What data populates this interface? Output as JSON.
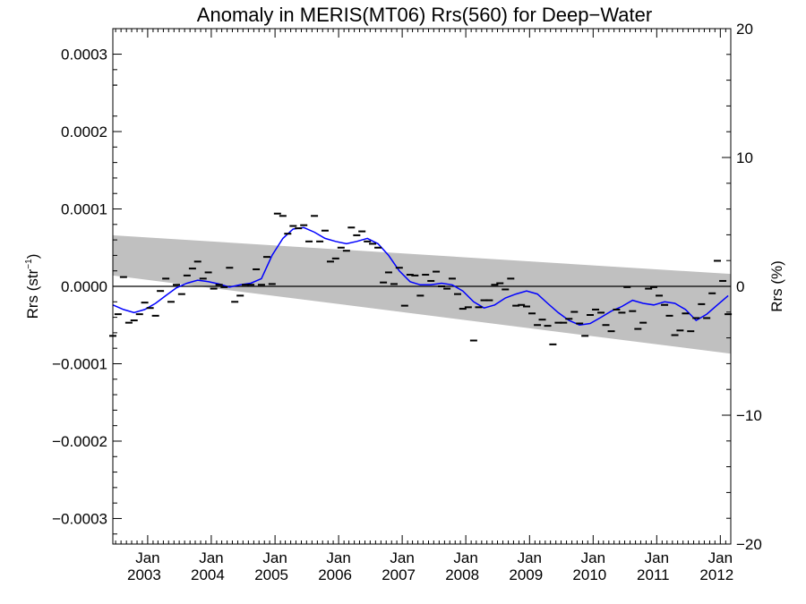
{
  "chart_data": {
    "type": "line",
    "title": "Anomaly in MERIS(MT06) Rrs(560) for Deep−Water",
    "ylabel_left_main": "Rrs (str",
    "ylabel_left_sup": "−1",
    "ylabel_left_close": ")",
    "ylabel_right": "Rrs (%)",
    "xlim": [
      "2002-06-15",
      "2012-03-01"
    ],
    "ylim": [
      -0.000333,
      0.000333
    ],
    "ylim_right": [
      -20,
      20
    ],
    "x_ticks": [
      {
        "date": "2003-01-01",
        "month": "Jan",
        "year": "2003"
      },
      {
        "date": "2004-01-01",
        "month": "Jan",
        "year": "2004"
      },
      {
        "date": "2005-01-01",
        "month": "Jan",
        "year": "2005"
      },
      {
        "date": "2006-01-01",
        "month": "Jan",
        "year": "2006"
      },
      {
        "date": "2007-01-01",
        "month": "Jan",
        "year": "2007"
      },
      {
        "date": "2008-01-01",
        "month": "Jan",
        "year": "2008"
      },
      {
        "date": "2009-01-01",
        "month": "Jan",
        "year": "2009"
      },
      {
        "date": "2010-01-01",
        "month": "Jan",
        "year": "2010"
      },
      {
        "date": "2011-01-01",
        "month": "Jan",
        "year": "2011"
      },
      {
        "date": "2012-01-01",
        "month": "Jan",
        "year": "2012"
      }
    ],
    "y_ticks_left": [
      {
        "value": 0.0003,
        "label": "0.0003"
      },
      {
        "value": 0.0002,
        "label": "0.0002"
      },
      {
        "value": 0.0001,
        "label": "0.0001"
      },
      {
        "value": 0.0,
        "label": "0.0000"
      },
      {
        "value": -0.0001,
        "label": "−0.0001"
      },
      {
        "value": -0.0002,
        "label": "−0.0002"
      },
      {
        "value": -0.0003,
        "label": "−0.0003"
      }
    ],
    "y_ticks_right": [
      {
        "value": 20,
        "label": "20"
      },
      {
        "value": 10,
        "label": "10"
      },
      {
        "value": 0,
        "label": "0"
      },
      {
        "value": -10,
        "label": "−10"
      },
      {
        "value": -20,
        "label": "−20"
      }
    ],
    "zero_line": 0.0,
    "confidence_band": {
      "x": [
        "2002-06-15",
        "2012-03-01"
      ],
      "upper": [
        6.6e-05,
        1.6e-05
      ],
      "lower": [
        1.4e-05,
        -8.7e-05
      ],
      "color": "#c0c0c0"
    },
    "series": [
      {
        "style": "marker-dash",
        "color": "#000000",
        "x": [
          "2002-06-15",
          "2002-07-15",
          "2002-08-15",
          "2002-09-15",
          "2002-10-15",
          "2002-11-15",
          "2002-12-15",
          "2003-01-15",
          "2003-02-15",
          "2003-03-15",
          "2003-04-15",
          "2003-05-15",
          "2003-06-15",
          "2003-07-15",
          "2003-08-15",
          "2003-09-15",
          "2003-10-15",
          "2003-11-15",
          "2003-12-15",
          "2004-01-15",
          "2004-02-15",
          "2004-03-15",
          "2004-04-15",
          "2004-05-15",
          "2004-06-15",
          "2004-07-15",
          "2004-08-15",
          "2004-09-15",
          "2004-10-15",
          "2004-11-15",
          "2004-12-15",
          "2005-01-15",
          "2005-02-15",
          "2005-03-15",
          "2005-04-15",
          "2005-05-15",
          "2005-06-15",
          "2005-07-15",
          "2005-08-15",
          "2005-09-15",
          "2005-10-15",
          "2005-11-15",
          "2005-12-15",
          "2006-01-15",
          "2006-02-15",
          "2006-03-15",
          "2006-04-15",
          "2006-05-15",
          "2006-06-15",
          "2006-07-15",
          "2006-08-15",
          "2006-09-15",
          "2006-10-15",
          "2006-11-15",
          "2006-12-15",
          "2007-01-15",
          "2007-02-15",
          "2007-03-15",
          "2007-04-15",
          "2007-05-15",
          "2007-06-15",
          "2007-07-15",
          "2007-08-15",
          "2007-09-15",
          "2007-10-15",
          "2007-11-15",
          "2007-12-15",
          "2008-01-15",
          "2008-02-15",
          "2008-03-15",
          "2008-04-15",
          "2008-05-15",
          "2008-06-15",
          "2008-07-15",
          "2008-08-15",
          "2008-09-15",
          "2008-10-15",
          "2008-11-15",
          "2008-12-15",
          "2009-01-15",
          "2009-02-15",
          "2009-03-15",
          "2009-04-15",
          "2009-05-15",
          "2009-06-15",
          "2009-07-15",
          "2009-08-15",
          "2009-09-15",
          "2009-10-15",
          "2009-11-15",
          "2009-12-15",
          "2010-01-15",
          "2010-02-15",
          "2010-03-15",
          "2010-04-15",
          "2010-05-15",
          "2010-06-15",
          "2010-07-15",
          "2010-08-15",
          "2010-09-15",
          "2010-10-15",
          "2010-11-15",
          "2010-12-15",
          "2011-01-15",
          "2011-02-15",
          "2011-03-15",
          "2011-04-15",
          "2011-05-15",
          "2011-06-15",
          "2011-07-15",
          "2011-08-15",
          "2011-09-15",
          "2011-10-15",
          "2011-11-15",
          "2011-12-15",
          "2012-01-15",
          "2012-02-15"
        ],
        "values": [
          -6.4e-05,
          -3.6e-05,
          1.2e-05,
          -4.7e-05,
          -4.4e-05,
          -3.6e-05,
          -2.1e-05,
          -2.8e-05,
          -3.8e-05,
          -6e-06,
          1e-05,
          -2e-05,
          2e-06,
          -1e-05,
          1.4e-05,
          2.3e-05,
          3.2e-05,
          1e-05,
          1.8e-05,
          -3e-06,
          2e-06,
          -1e-06,
          2.4e-05,
          -2e-05,
          -1.2e-05,
          2e-06,
          2e-06,
          2.2e-05,
          2e-06,
          3.8e-05,
          3e-06,
          9.4e-05,
          9.1e-05,
          6.8e-05,
          7.8e-05,
          7.5e-05,
          7.9e-05,
          5.8e-05,
          9.1e-05,
          5.8e-05,
          7.2e-05,
          3.2e-05,
          3.6e-05,
          5e-05,
          4.6e-05,
          7.6e-05,
          6.6e-05,
          7.1e-05,
          5.8e-05,
          5.5e-05,
          5e-05,
          5e-06,
          1.8e-05,
          3e-06,
          2.4e-05,
          -2.5e-05,
          1.5e-05,
          1.4e-05,
          -1.2e-05,
          1.5e-05,
          7e-06,
          1.9e-05,
          0.0,
          -3e-06,
          1e-05,
          -1e-05,
          -2.9e-05,
          -2.7e-05,
          -7e-05,
          -2.7e-05,
          -1.8e-05,
          -1.8e-05,
          2e-06,
          4e-06,
          -4e-06,
          1e-05,
          -2.5e-05,
          -2.4e-05,
          -2.6e-05,
          -3.5e-05,
          -5e-05,
          -4.3e-05,
          -5.1e-05,
          -7.5e-05,
          -4.7e-05,
          -4.7e-05,
          -4.2e-05,
          -3.3e-05,
          -4.8e-05,
          -6.4e-05,
          -3.7e-05,
          -3e-05,
          -3.4e-05,
          -5e-05,
          -5.8e-05,
          -3e-05,
          -3.4e-05,
          -1e-06,
          -3.2e-05,
          -5.5e-05,
          -4.7e-05,
          -3e-06,
          -1e-06,
          -1.2e-05,
          -2.4e-05,
          -3.8e-05,
          -6.3e-05,
          -5.7e-05,
          -3.5e-05,
          -5.8e-05,
          -4.1e-05,
          -2.3e-05,
          -4.1e-05,
          -9e-06,
          3.3e-05,
          7e-06,
          -3.6e-05
        ]
      },
      {
        "style": "line",
        "color": "#0000ff",
        "x": [
          "2002-06-15",
          "2002-08-15",
          "2002-10-15",
          "2002-12-15",
          "2003-02-15",
          "2003-04-15",
          "2003-06-15",
          "2003-08-15",
          "2003-10-15",
          "2003-12-15",
          "2004-02-15",
          "2004-04-15",
          "2004-06-15",
          "2004-08-15",
          "2004-10-15",
          "2004-12-15",
          "2005-02-15",
          "2005-04-15",
          "2005-06-15",
          "2005-08-15",
          "2005-10-15",
          "2005-12-15",
          "2006-02-15",
          "2006-04-15",
          "2006-06-15",
          "2006-08-15",
          "2006-10-15",
          "2006-12-15",
          "2007-02-15",
          "2007-04-15",
          "2007-06-15",
          "2007-08-15",
          "2007-10-15",
          "2007-12-15",
          "2008-02-15",
          "2008-04-15",
          "2008-06-15",
          "2008-08-15",
          "2008-10-15",
          "2008-12-15",
          "2009-02-15",
          "2009-04-15",
          "2009-06-15",
          "2009-08-15",
          "2009-10-15",
          "2009-12-15",
          "2010-02-15",
          "2010-04-15",
          "2010-06-15",
          "2010-08-15",
          "2010-10-15",
          "2010-12-15",
          "2011-02-15",
          "2011-04-15",
          "2011-06-15",
          "2011-08-15",
          "2011-10-15",
          "2011-12-15",
          "2012-02-15"
        ],
        "values": [
          -2.4e-05,
          -3e-05,
          -3.4e-05,
          -3e-05,
          -2.2e-05,
          -1.2e-05,
          -2e-06,
          4e-06,
          8e-06,
          6e-06,
          3e-06,
          -1e-06,
          2e-06,
          4e-06,
          1e-05,
          4e-05,
          6.2e-05,
          7.4e-05,
          7.6e-05,
          7e-05,
          6.2e-05,
          5.8e-05,
          5.5e-05,
          5.8e-05,
          6.2e-05,
          5.5e-05,
          4e-05,
          2e-05,
          6e-06,
          2e-06,
          2e-06,
          4e-06,
          2e-06,
          -6e-06,
          -2e-05,
          -2.8e-05,
          -2.4e-05,
          -1.5e-05,
          -1e-05,
          -6e-06,
          -1e-05,
          -2.2e-05,
          -3.4e-05,
          -4.4e-05,
          -5e-05,
          -4.8e-05,
          -4e-05,
          -3.2e-05,
          -2.6e-05,
          -1.8e-05,
          -2.2e-05,
          -2.4e-05,
          -2e-05,
          -2.2e-05,
          -3e-05,
          -4.4e-05,
          -3.6e-05,
          -2.4e-05,
          -1.2e-05
        ]
      }
    ]
  }
}
